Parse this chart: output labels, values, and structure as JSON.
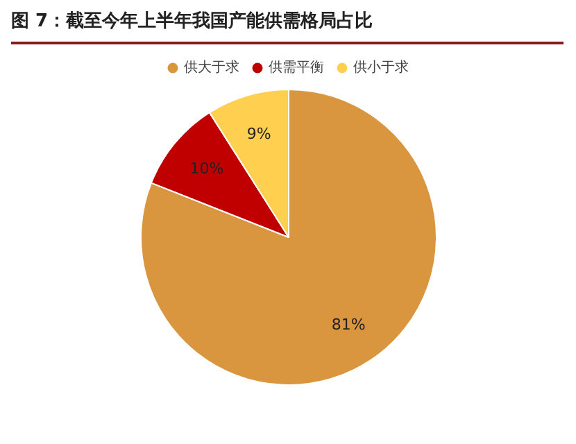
{
  "chart_data": {
    "type": "pie",
    "title": "图 7：截至今年上半年我国产能供需格局占比",
    "categories": [
      "供大于求",
      "供需平衡",
      "供小于求"
    ],
    "values": [
      81,
      10,
      9
    ],
    "colors": [
      "#d9963f",
      "#c00000",
      "#ffd04f"
    ],
    "value_labels": [
      "81%",
      "10%",
      "9%"
    ],
    "legend": "top"
  }
}
